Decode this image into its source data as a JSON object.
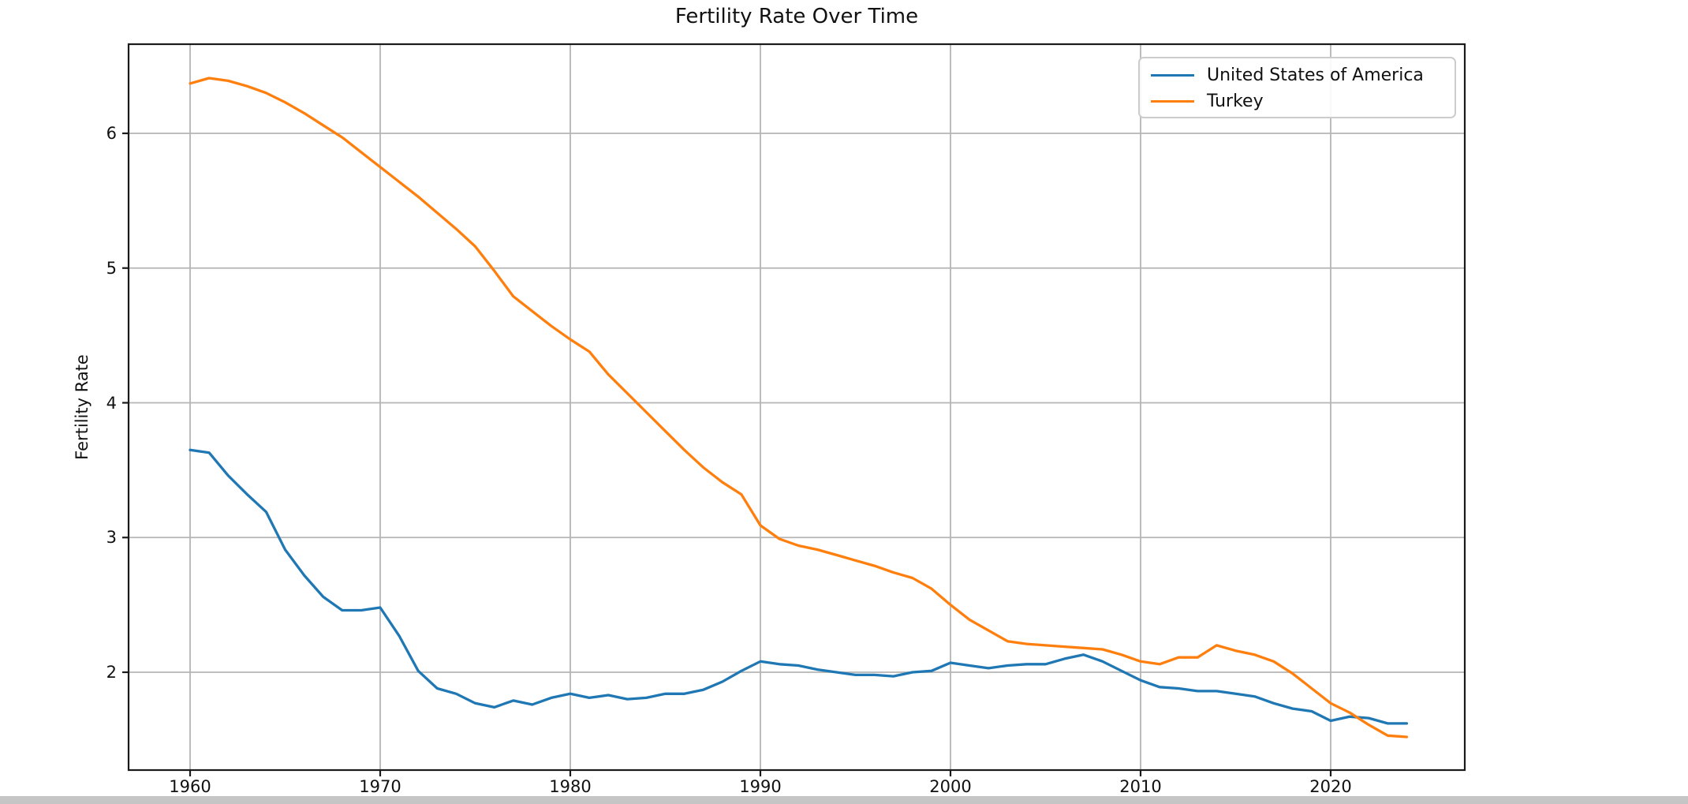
{
  "page": {
    "background": "#ffffff",
    "bottom_bar_color": "#c5c5c5"
  },
  "chart": {
    "title": "Fertility Rate Over Time",
    "ylabel": "Fertility Rate"
  },
  "chart_data": {
    "type": "line",
    "title": "Fertility Rate Over Time",
    "xlabel": "",
    "ylabel": "Fertility Rate",
    "grid": true,
    "legend_position": "upper right",
    "xlim": [
      1956.8,
      2027.2
    ],
    "ylim": [
      1.27,
      6.67
    ],
    "x_ticks": [
      1960,
      1970,
      1980,
      1990,
      2000,
      2010,
      2020
    ],
    "x_tick_labels": [
      "1960",
      "1970",
      "1980",
      "1990",
      "2000",
      "2010",
      "2020"
    ],
    "y_ticks": [
      2,
      3,
      4,
      5,
      6
    ],
    "y_tick_labels": [
      "2",
      "3",
      "4",
      "5",
      "6"
    ],
    "grid_color": "#b5b5b5",
    "spine_color": "#1a1a1a",
    "x": [
      1960,
      1961,
      1962,
      1963,
      1964,
      1965,
      1966,
      1967,
      1968,
      1969,
      1970,
      1971,
      1972,
      1973,
      1974,
      1975,
      1976,
      1977,
      1978,
      1979,
      1980,
      1981,
      1982,
      1983,
      1984,
      1985,
      1986,
      1987,
      1988,
      1989,
      1990,
      1991,
      1992,
      1993,
      1994,
      1995,
      1996,
      1997,
      1998,
      1999,
      2000,
      2001,
      2002,
      2003,
      2004,
      2005,
      2006,
      2007,
      2008,
      2009,
      2010,
      2011,
      2012,
      2013,
      2014,
      2015,
      2016,
      2017,
      2018,
      2019,
      2020,
      2021,
      2022,
      2023,
      2024
    ],
    "series": [
      {
        "name": "United States of America",
        "color": "#1f77b4",
        "values": [
          3.65,
          3.63,
          3.46,
          3.32,
          3.19,
          2.91,
          2.72,
          2.56,
          2.46,
          2.46,
          2.48,
          2.27,
          2.01,
          1.88,
          1.84,
          1.77,
          1.74,
          1.79,
          1.76,
          1.81,
          1.84,
          1.81,
          1.83,
          1.8,
          1.81,
          1.84,
          1.84,
          1.87,
          1.93,
          2.01,
          2.08,
          2.06,
          2.05,
          2.02,
          2.0,
          1.98,
          1.98,
          1.97,
          2.0,
          2.01,
          2.07,
          2.05,
          2.03,
          2.05,
          2.06,
          2.06,
          2.1,
          2.13,
          2.08,
          2.01,
          1.94,
          1.89,
          1.88,
          1.86,
          1.86,
          1.84,
          1.82,
          1.77,
          1.73,
          1.71,
          1.64,
          1.67,
          1.66,
          1.62,
          1.62
        ]
      },
      {
        "name": "Turkey",
        "color": "#ff7f0e",
        "values": [
          6.37,
          6.41,
          6.39,
          6.35,
          6.3,
          6.23,
          6.15,
          6.06,
          5.97,
          5.86,
          5.75,
          5.64,
          5.53,
          5.41,
          5.29,
          5.16,
          4.98,
          4.79,
          4.68,
          4.57,
          4.47,
          4.38,
          4.21,
          4.07,
          3.93,
          3.79,
          3.65,
          3.52,
          3.41,
          3.32,
          3.09,
          2.99,
          2.94,
          2.91,
          2.87,
          2.83,
          2.79,
          2.74,
          2.7,
          2.62,
          2.5,
          2.39,
          2.31,
          2.23,
          2.21,
          2.2,
          2.19,
          2.18,
          2.17,
          2.13,
          2.08,
          2.06,
          2.11,
          2.11,
          2.2,
          2.16,
          2.13,
          2.08,
          1.99,
          1.88,
          1.77,
          1.7,
          1.61,
          1.53,
          1.52
        ]
      }
    ]
  }
}
